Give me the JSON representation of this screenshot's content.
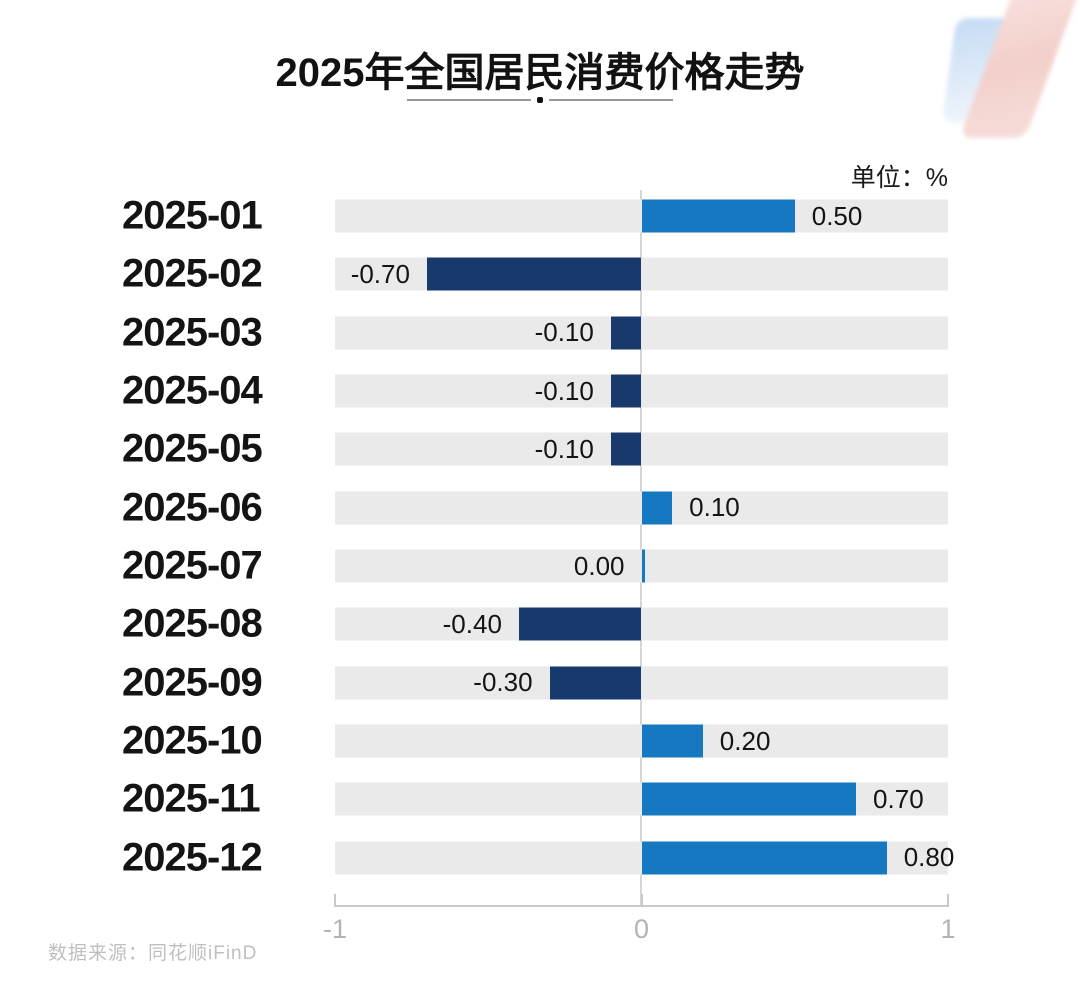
{
  "title": "2025年全国居民消费价格走势",
  "unit_label": "单位：%",
  "source": "数据来源：同花顺iFinD",
  "colors": {
    "positive_bar": "#1778c2",
    "negative_bar": "#18396b",
    "track": "#eaeaea",
    "zero_line": "#d6d6d6",
    "axis": "#c9c9c9",
    "axis_label": "#b3b3b3"
  },
  "chart_data": {
    "type": "bar",
    "orientation": "horizontal",
    "title": "2025年全国居民消费价格走势",
    "unit": "%",
    "categories": [
      "2025-01",
      "2025-02",
      "2025-03",
      "2025-04",
      "2025-05",
      "2025-06",
      "2025-07",
      "2025-08",
      "2025-09",
      "2025-10",
      "2025-11",
      "2025-12"
    ],
    "values": [
      0.5,
      -0.7,
      -0.1,
      -0.1,
      -0.1,
      0.1,
      0.0,
      -0.4,
      -0.3,
      0.2,
      0.7,
      0.8
    ],
    "value_labels": [
      "0.50",
      "-0.70",
      "-0.10",
      "-0.10",
      "-0.10",
      "0.10",
      "0.00",
      "-0.40",
      "-0.30",
      "0.20",
      "0.70",
      "0.80"
    ],
    "xlim": [
      -1,
      1
    ],
    "x_ticks": [
      "-1",
      "0",
      "1"
    ],
    "grid": false,
    "legend": false
  }
}
